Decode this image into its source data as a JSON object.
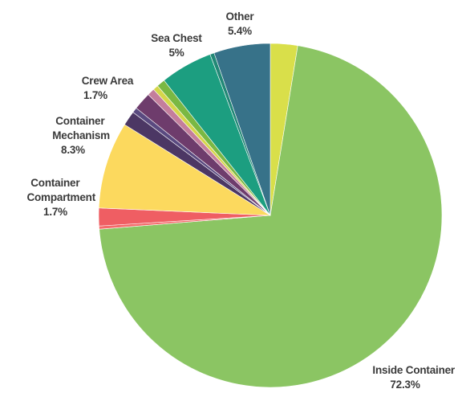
{
  "chart_data": {
    "type": "pie",
    "title": "",
    "start_angle_deg": 0,
    "direction": "clockwise",
    "slices": [
      {
        "label": "",
        "value": 2.6,
        "color": "#d9df4a"
      },
      {
        "label": "Inside Container",
        "value": 72.3,
        "value_label": "72.3%",
        "color": "#8bc563"
      },
      {
        "label": "",
        "value": 0.3,
        "color": "#f46b6b"
      },
      {
        "label": "Container Compartment",
        "value": 1.7,
        "value_label": "1.7%",
        "color": "#ef5e63"
      },
      {
        "label": "Container Mechanism",
        "value": 8.3,
        "value_label": "8.3%",
        "color": "#fcd95e"
      },
      {
        "label": "",
        "value": 1.4,
        "color": "#4c3764"
      },
      {
        "label": "",
        "value": 0.5,
        "color": "#5a4a80"
      },
      {
        "label": "Crew Area",
        "value": 1.7,
        "value_label": "1.7%",
        "color": "#6e3c6c"
      },
      {
        "label": "",
        "value": 0.7,
        "color": "#c47e9c"
      },
      {
        "label": "",
        "value": 0.5,
        "color": "#d5d64a"
      },
      {
        "label": "",
        "value": 0.8,
        "color": "#7ab843"
      },
      {
        "label": "Sea Chest",
        "value": 5.0,
        "value_label": "5%",
        "color": "#1c9e80"
      },
      {
        "label": "",
        "value": 0.4,
        "color": "#228876"
      },
      {
        "label": "Other",
        "value": 5.4,
        "value_label": "5.4%",
        "color": "#377289"
      }
    ]
  }
}
